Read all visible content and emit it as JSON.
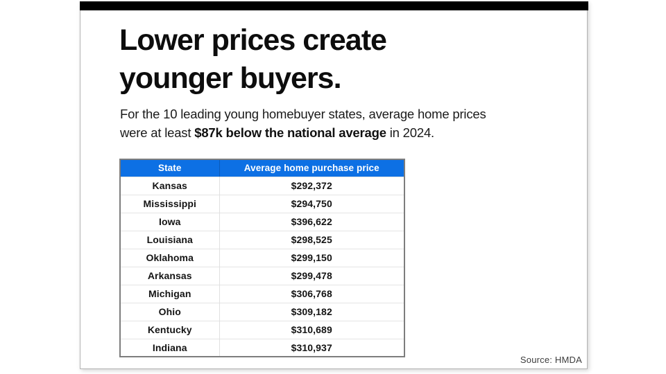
{
  "slide": {
    "title_line1": "Lower prices create",
    "title_line2": "younger buyers.",
    "subtitle_pre": "For the 10 leading young homebuyer states, average home prices were at least ",
    "subtitle_bold": "$87k below the national average",
    "subtitle_post": " in 2024.",
    "source": "Source: HMDA"
  },
  "chart_data": {
    "type": "table",
    "title": "Lower prices create younger buyers.",
    "subtitle": "For the 10 leading young homebuyer states, average home prices were at least $87k below the national average in 2024.",
    "columns": [
      "State",
      "Average home purchase price"
    ],
    "rows": [
      {
        "state": "Kansas",
        "price": "$292,372"
      },
      {
        "state": "Mississippi",
        "price": "$294,750"
      },
      {
        "state": "Iowa",
        "price": "$396,622"
      },
      {
        "state": "Louisiana",
        "price": "$298,525"
      },
      {
        "state": "Oklahoma",
        "price": "$299,150"
      },
      {
        "state": "Arkansas",
        "price": "$299,478"
      },
      {
        "state": "Michigan",
        "price": "$306,768"
      },
      {
        "state": "Ohio",
        "price": "$309,182"
      },
      {
        "state": "Kentucky",
        "price": "$310,689"
      },
      {
        "state": "Indiana",
        "price": "$310,937"
      }
    ],
    "source_label": "Source: HMDA"
  },
  "colors": {
    "header_blue": "#0d70e4",
    "top_bar_black": "#000000"
  }
}
